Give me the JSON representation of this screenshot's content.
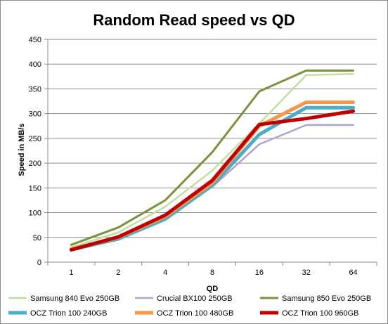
{
  "chart_data": {
    "type": "line",
    "title": "Random Read speed vs QD",
    "xlabel": "QD",
    "ylabel": "Speed in MB/s",
    "categories": [
      "1",
      "2",
      "4",
      "8",
      "16",
      "32",
      "64"
    ],
    "ylim": [
      0,
      450
    ],
    "yticks": [
      "0",
      "50",
      "100",
      "150",
      "200",
      "250",
      "300",
      "350",
      "400",
      "450"
    ],
    "grid": true,
    "legend_position": "bottom",
    "series": [
      {
        "name": "Samsung 840 Evo 250GB",
        "color": "#c3dea0",
        "values": [
          30,
          60,
          112,
          185,
          280,
          378,
          380
        ]
      },
      {
        "name": "Crucial BX100 250GB",
        "color": "#b3a2c7",
        "values": [
          27,
          52,
          90,
          152,
          238,
          277,
          277
        ]
      },
      {
        "name": "Samsung 850 Evo 250GB",
        "color": "#77933c",
        "values": [
          35,
          70,
          125,
          222,
          345,
          387,
          387
        ]
      },
      {
        "name": "OCZ Trion 100 240GB",
        "color": "#4bacc6",
        "values": [
          25,
          47,
          87,
          155,
          258,
          312,
          312
        ]
      },
      {
        "name": "OCZ Trion 100 480GB",
        "color": "#f79646",
        "values": [
          26,
          50,
          92,
          160,
          275,
          323,
          323
        ]
      },
      {
        "name": "OCZ Trion 100 960GB",
        "color": "#c00000",
        "values": [
          25,
          51,
          95,
          165,
          278,
          290,
          305
        ]
      }
    ]
  }
}
